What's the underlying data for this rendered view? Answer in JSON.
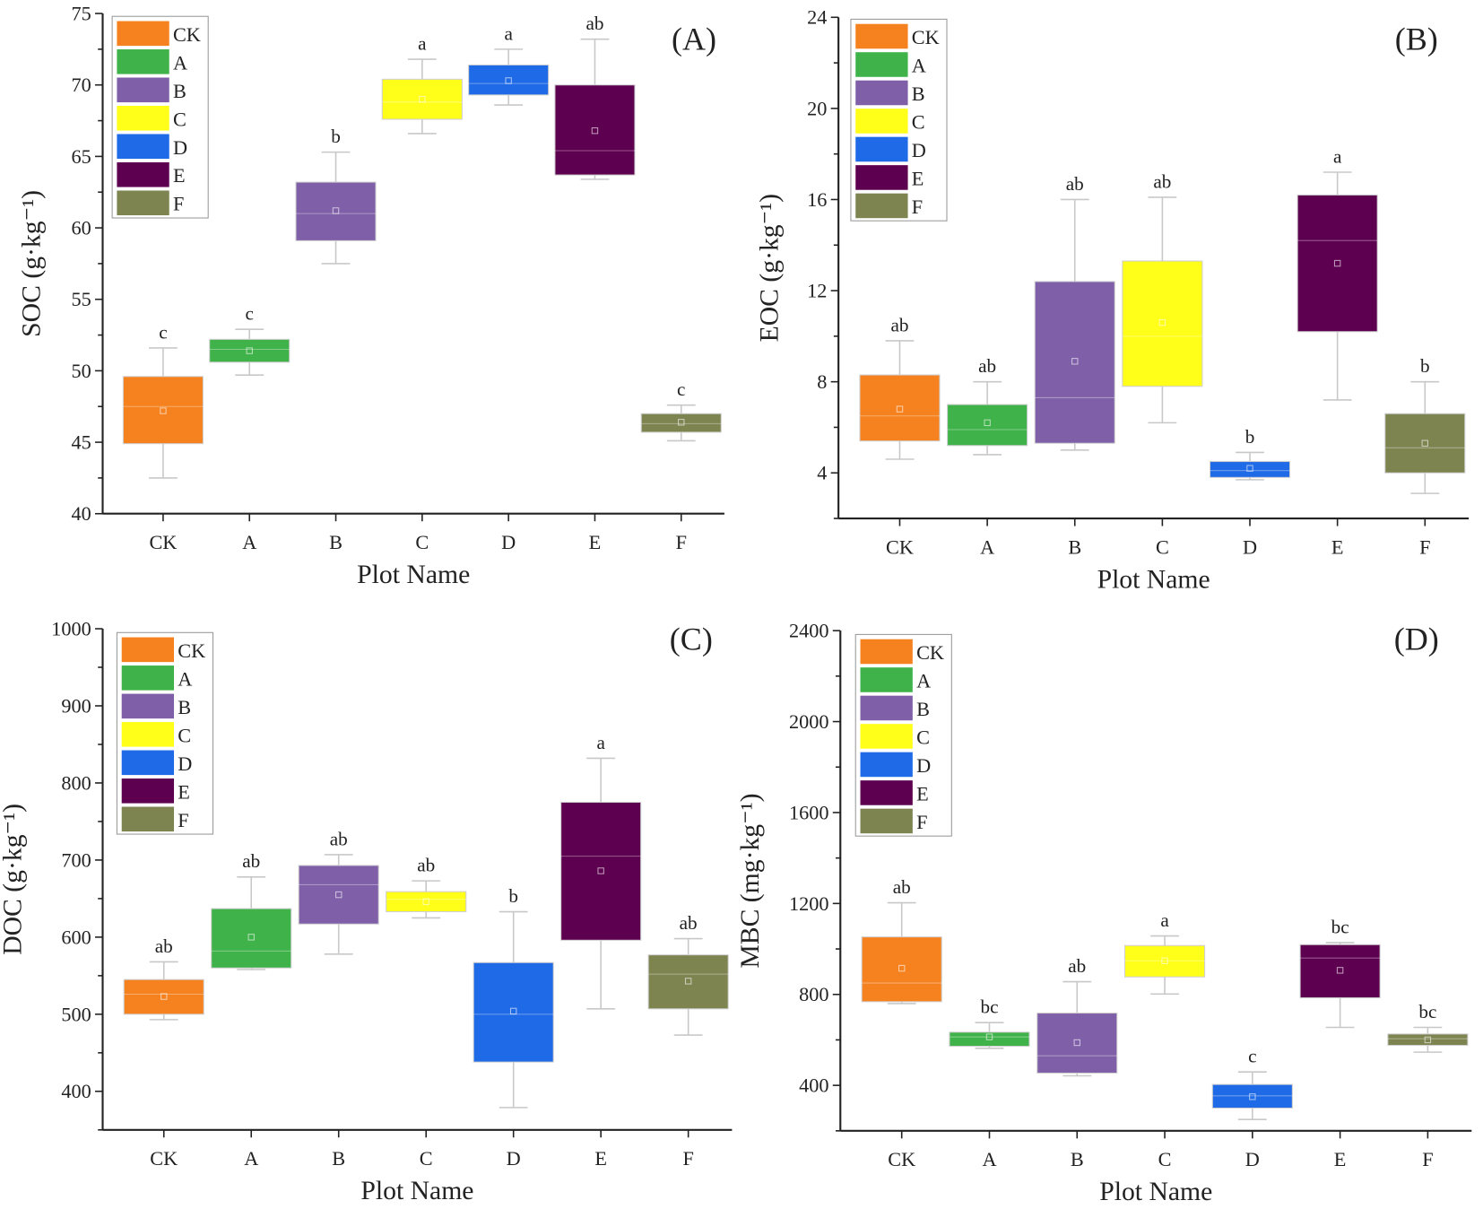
{
  "categories": [
    "CK",
    "A",
    "B",
    "C",
    "D",
    "E",
    "F"
  ],
  "colors": [
    "#f5821f",
    "#3fb24a",
    "#7f5fa8",
    "#ffff1a",
    "#1f6ae6",
    "#5e0050",
    "#7d8450"
  ],
  "chart_data": [
    {
      "type": "box",
      "panel_label": "(A)",
      "xlabel": "Plot Name",
      "ylabel": "SOC (g·kg⁻¹)",
      "ylim": [
        40,
        75
      ],
      "yticks": [
        40,
        45,
        50,
        55,
        60,
        65,
        70,
        75
      ],
      "boxes": [
        {
          "min": 42.5,
          "q1": 44.9,
          "median": 47.5,
          "q3": 49.6,
          "max": 51.6,
          "mean": 47.2,
          "sig": "c"
        },
        {
          "min": 49.7,
          "q1": 50.6,
          "median": 51.5,
          "q3": 52.2,
          "max": 52.9,
          "mean": 51.4,
          "sig": "c"
        },
        {
          "min": 57.5,
          "q1": 59.1,
          "median": 61.0,
          "q3": 63.2,
          "max": 65.3,
          "mean": 61.2,
          "sig": "b"
        },
        {
          "min": 66.6,
          "q1": 67.6,
          "median": 68.8,
          "q3": 70.4,
          "max": 71.8,
          "mean": 69.0,
          "sig": "a"
        },
        {
          "min": 68.6,
          "q1": 69.3,
          "median": 70.1,
          "q3": 71.4,
          "max": 72.5,
          "mean": 70.3,
          "sig": "a"
        },
        {
          "min": 63.4,
          "q1": 63.7,
          "median": 65.4,
          "q3": 70.0,
          "max": 73.2,
          "mean": 66.8,
          "sig": "ab"
        },
        {
          "min": 45.1,
          "q1": 45.7,
          "median": 46.3,
          "q3": 47.0,
          "max": 47.6,
          "mean": 46.4,
          "sig": "c"
        }
      ]
    },
    {
      "type": "box",
      "panel_label": "(B)",
      "xlabel": "Plot Name",
      "ylabel": "EOC (g·kg⁻¹)",
      "ylim": [
        2,
        24
      ],
      "yticks": [
        4,
        8,
        12,
        16,
        20,
        24
      ],
      "boxes": [
        {
          "min": 4.6,
          "q1": 5.4,
          "median": 6.5,
          "q3": 8.3,
          "max": 9.8,
          "mean": 6.8,
          "sig": "ab"
        },
        {
          "min": 4.8,
          "q1": 5.2,
          "median": 5.9,
          "q3": 7.0,
          "max": 8.0,
          "mean": 6.2,
          "sig": "ab"
        },
        {
          "min": 5.0,
          "q1": 5.3,
          "median": 7.3,
          "q3": 12.4,
          "max": 16.0,
          "mean": 8.9,
          "sig": "ab"
        },
        {
          "min": 6.2,
          "q1": 7.8,
          "median": 10.0,
          "q3": 13.3,
          "max": 16.1,
          "mean": 10.6,
          "sig": "ab"
        },
        {
          "min": 3.7,
          "q1": 3.8,
          "median": 4.1,
          "q3": 4.5,
          "max": 4.9,
          "mean": 4.2,
          "sig": "b"
        },
        {
          "min": 7.2,
          "q1": 10.2,
          "median": 14.2,
          "q3": 16.2,
          "max": 17.2,
          "mean": 13.2,
          "sig": "a"
        },
        {
          "min": 3.1,
          "q1": 4.0,
          "median": 5.1,
          "q3": 6.6,
          "max": 8.0,
          "mean": 5.3,
          "sig": "b"
        }
      ]
    },
    {
      "type": "box",
      "panel_label": "(C)",
      "xlabel": "Plot Name",
      "ylabel": "DOC (g·kg⁻¹)",
      "ylim": [
        350,
        1000
      ],
      "yticks": [
        400,
        500,
        600,
        700,
        800,
        900,
        1000
      ],
      "boxes": [
        {
          "min": 493,
          "q1": 500,
          "median": 526,
          "q3": 545,
          "max": 568,
          "mean": 523,
          "sig": "ab"
        },
        {
          "min": 558,
          "q1": 560,
          "median": 582,
          "q3": 637,
          "max": 678,
          "mean": 600,
          "sig": "ab"
        },
        {
          "min": 578,
          "q1": 617,
          "median": 668,
          "q3": 693,
          "max": 707,
          "mean": 655,
          "sig": "ab"
        },
        {
          "min": 625,
          "q1": 633,
          "median": 649,
          "q3": 659,
          "max": 673,
          "mean": 646,
          "sig": "ab"
        },
        {
          "min": 379,
          "q1": 438,
          "median": 500,
          "q3": 567,
          "max": 633,
          "mean": 504,
          "sig": "b"
        },
        {
          "min": 507,
          "q1": 596,
          "median": 705,
          "q3": 775,
          "max": 832,
          "mean": 686,
          "sig": "a"
        },
        {
          "min": 473,
          "q1": 507,
          "median": 552,
          "q3": 577,
          "max": 598,
          "mean": 543,
          "sig": "ab"
        }
      ]
    },
    {
      "type": "box",
      "panel_label": "(D)",
      "xlabel": "Plot Name",
      "ylabel": "MBC (mg·kg⁻¹)",
      "ylim": [
        200,
        2400
      ],
      "yticks": [
        400,
        800,
        1200,
        1600,
        2000,
        2400
      ],
      "boxes": [
        {
          "min": 760,
          "q1": 768,
          "median": 850,
          "q3": 1053,
          "max": 1203,
          "mean": 915,
          "sig": "ab"
        },
        {
          "min": 563,
          "q1": 572,
          "median": 613,
          "q3": 634,
          "max": 676,
          "mean": 613,
          "sig": "bc"
        },
        {
          "min": 442,
          "q1": 454,
          "median": 530,
          "q3": 718,
          "max": 856,
          "mean": 588,
          "sig": "ab"
        },
        {
          "min": 802,
          "q1": 877,
          "median": 948,
          "q3": 1015,
          "max": 1057,
          "mean": 948,
          "sig": "a"
        },
        {
          "min": 250,
          "q1": 300,
          "median": 354,
          "q3": 404,
          "max": 459,
          "mean": 350,
          "sig": "c"
        },
        {
          "min": 655,
          "q1": 785,
          "median": 960,
          "q3": 1019,
          "max": 1028,
          "mean": 906,
          "sig": "bc"
        },
        {
          "min": 546,
          "q1": 576,
          "median": 605,
          "q3": 626,
          "max": 655,
          "mean": 600,
          "sig": "bc"
        }
      ]
    }
  ]
}
